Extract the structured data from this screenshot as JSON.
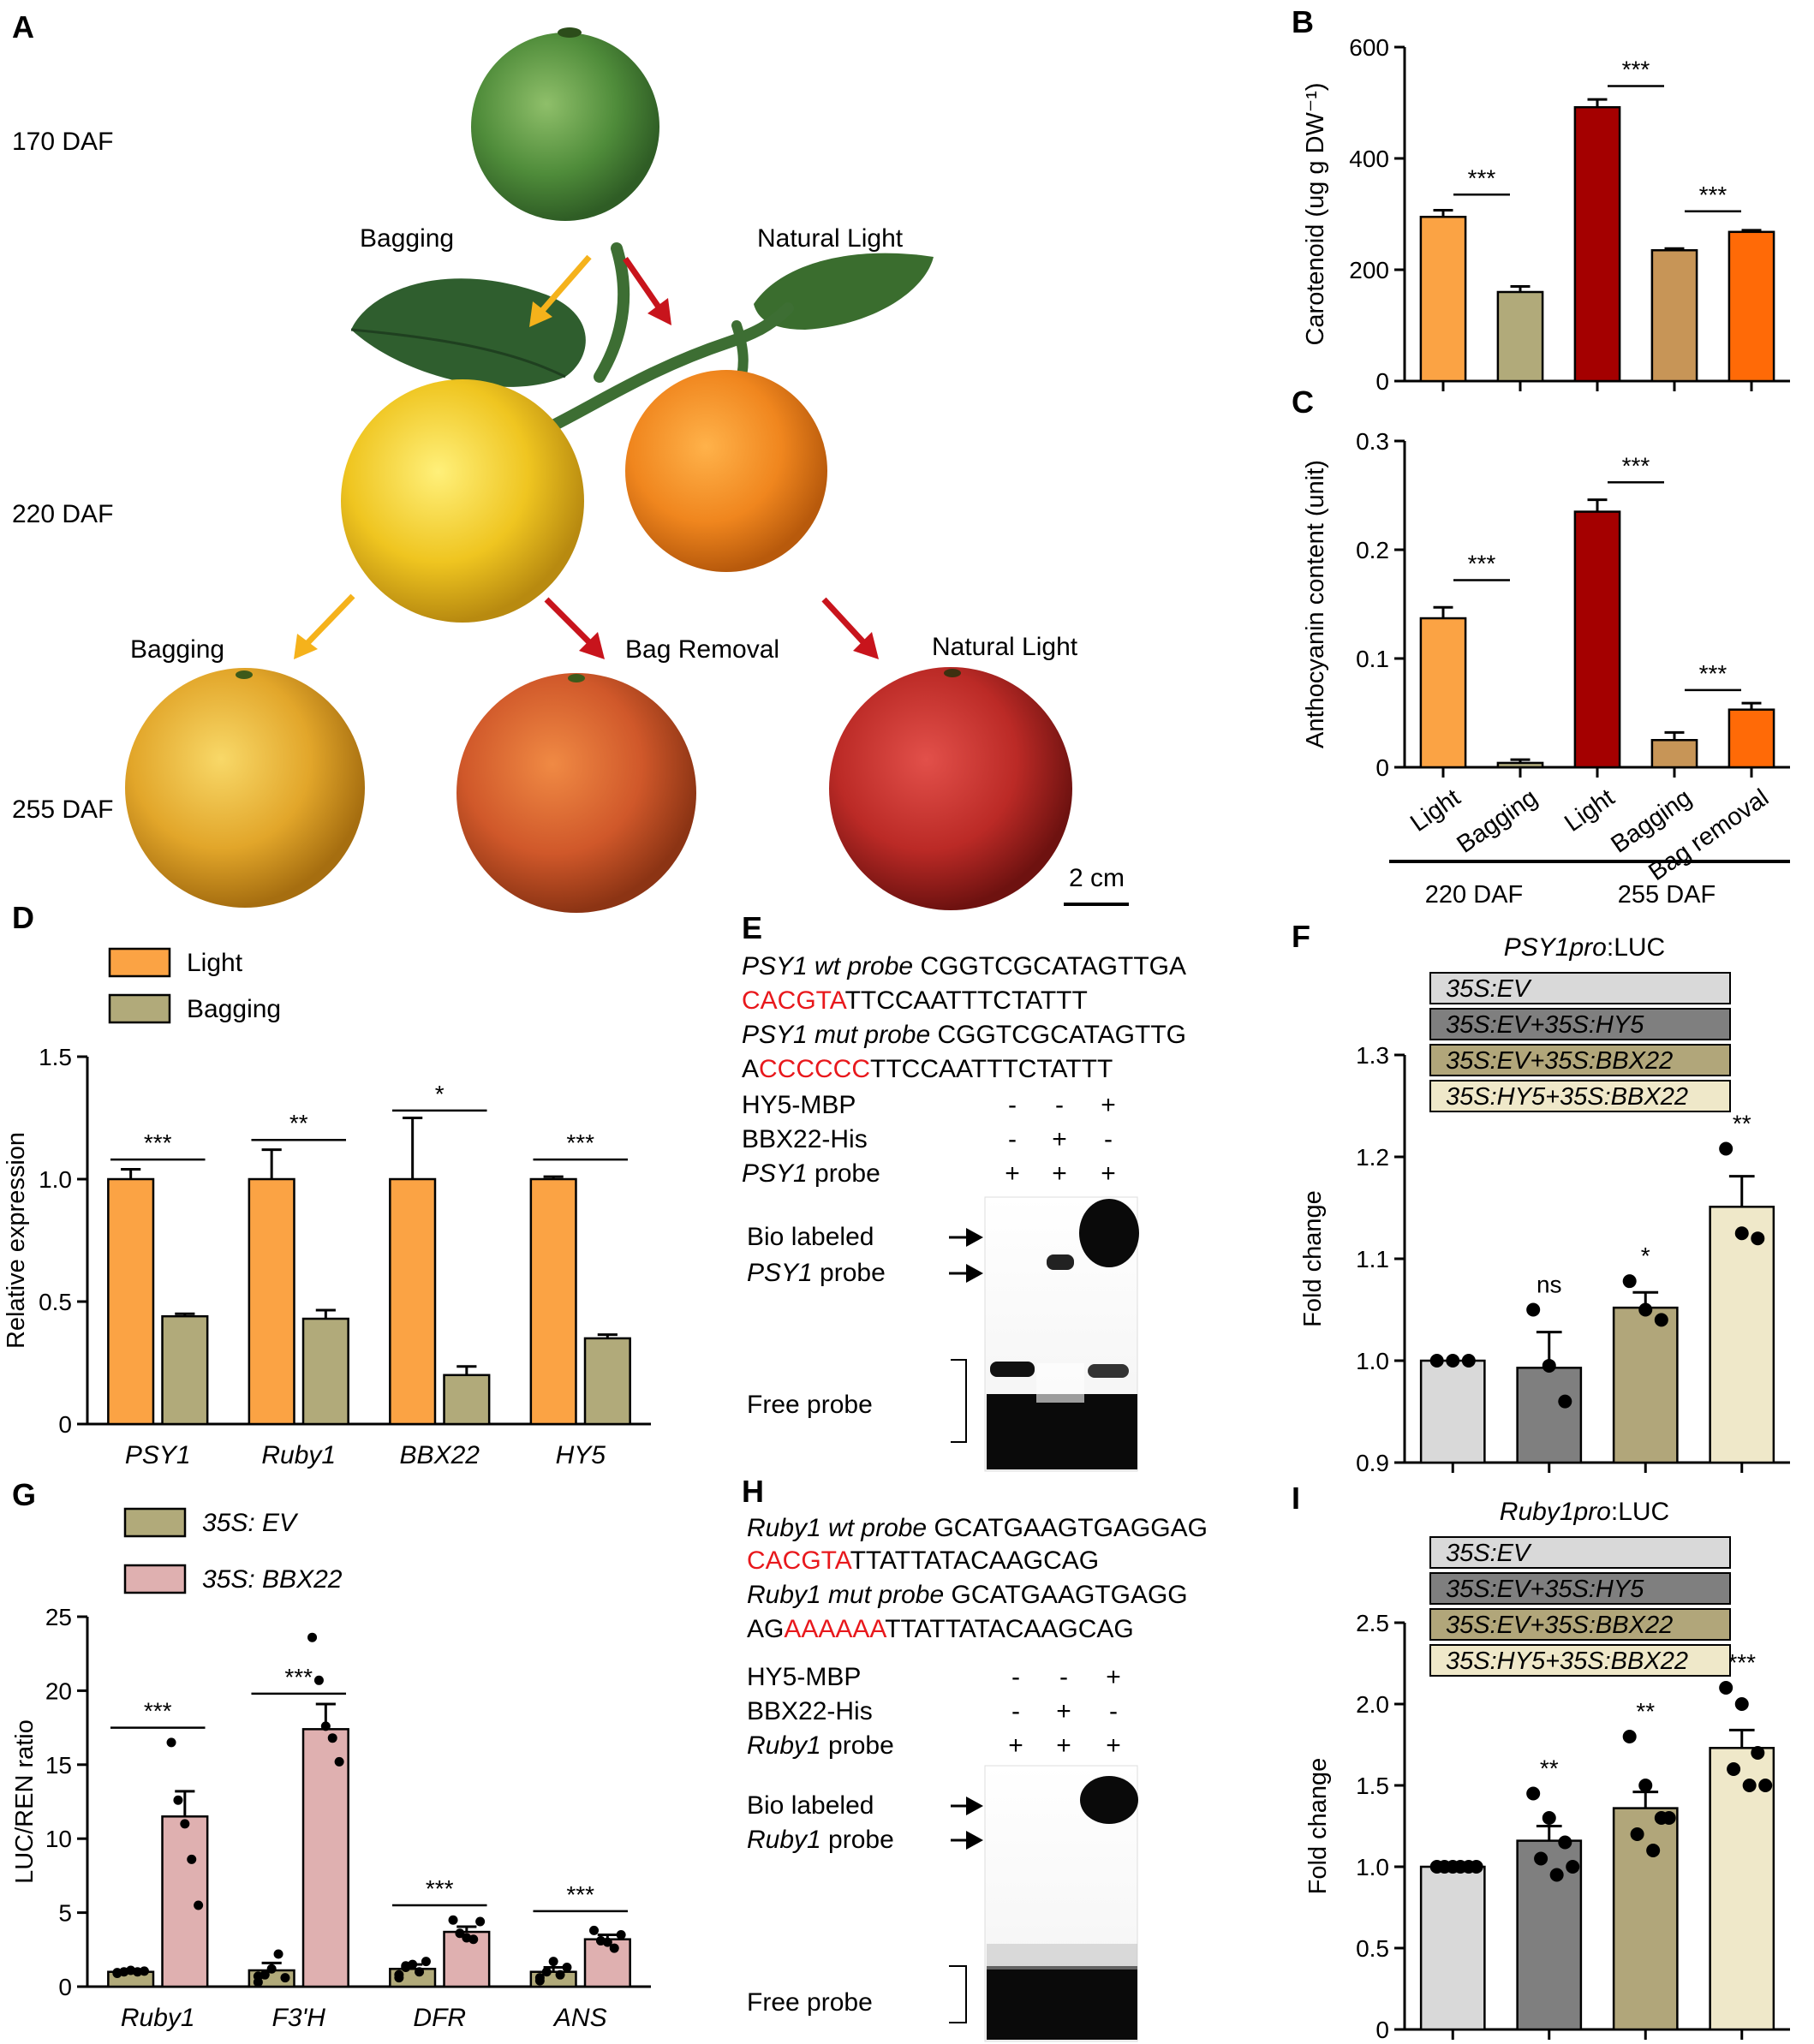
{
  "panels": {
    "A": {
      "letter": "A",
      "stages": [
        "170 DAF",
        "220 DAF",
        "255 DAF"
      ],
      "treatment_labels": {
        "bagging_1": "Bagging",
        "natural_light_1": "Natural Light",
        "bagging_2": "Bagging",
        "bag_removal": "Bag Removal",
        "natural_light_2": "Natural Light"
      },
      "scale_bar": "2 cm",
      "colors": {
        "bagging_arrow": "#f5b21b",
        "light_arrow": "#c8141c"
      }
    },
    "B": {
      "letter": "B"
    },
    "C": {
      "letter": "C"
    },
    "D": {
      "letter": "D"
    },
    "E": {
      "letter": "E",
      "wt_label": "PSY1 wt probe",
      "wt_seq_1": "CGGTCGCATAGTTGA",
      "wt_motif": "CACGTA",
      "wt_seq_2": "TTCCAATTTCTATTT",
      "mut_label": "PSY1 mut probe",
      "mut_seq_1": "CGGTCGCATAGTTG",
      "mut_prefix": "A",
      "mut_motif": "CCCCCC",
      "mut_seq_2": "TTCCAATTTCTATTT",
      "rows": [
        {
          "label": "HY5-MBP",
          "italic_part": "",
          "marks": [
            "-",
            "-",
            "+"
          ]
        },
        {
          "label": "BBX22-His",
          "italic_part": "",
          "marks": [
            "-",
            "+",
            "-"
          ]
        },
        {
          "label": " probe",
          "italic_part": "PSY1",
          "marks": [
            "+",
            "+",
            "+"
          ]
        }
      ],
      "bio_label_1": "Bio labeled",
      "bio_label_2_italic": "PSY1",
      "bio_label_2": " probe",
      "free_probe": "Free probe"
    },
    "F": {
      "letter": "F"
    },
    "G": {
      "letter": "G"
    },
    "H": {
      "letter": "H",
      "wt_label": "Ruby1 wt probe",
      "wt_seq_1": "GCATGAAGTGAGGAG",
      "wt_motif": "CACGTA",
      "wt_seq_2": "TTATTATACAAGCAG",
      "mut_label": "Ruby1 mut probe",
      "mut_seq_1": "GCATGAAGTGAGG",
      "mut_prefix": "AG",
      "mut_motif": "AAAAAA",
      "mut_seq_2": "TTATTATACAAGCAG",
      "rows": [
        {
          "label": "HY5-MBP",
          "italic_part": "",
          "marks": [
            "-",
            "-",
            "+"
          ]
        },
        {
          "label": "BBX22-His",
          "italic_part": "",
          "marks": [
            "-",
            "+",
            "-"
          ]
        },
        {
          "label": " probe",
          "italic_part": "Ruby1",
          "marks": [
            "+",
            "+",
            "+"
          ]
        }
      ],
      "bio_label_1": "Bio labeled",
      "bio_label_2_italic": "Ruby1",
      "bio_label_2": " probe",
      "free_probe": "Free probe"
    },
    "I": {
      "letter": "I"
    }
  },
  "chart_data": [
    {
      "id": "B",
      "type": "bar",
      "ylabel": "Carotenoid (ug g DW⁻¹)",
      "ylim": [
        0,
        600
      ],
      "yticks": [
        0,
        200,
        400,
        600
      ],
      "bars": [
        {
          "value": 295,
          "err": 12,
          "color": "#fba344"
        },
        {
          "value": 160,
          "err": 10,
          "color": "#b1aa7a"
        },
        {
          "value": 492,
          "err": 14,
          "color": "#a40000"
        },
        {
          "value": 235,
          "err": 3,
          "color": "#c79557"
        },
        {
          "value": 268,
          "err": 3,
          "color": "#ff6a07"
        }
      ],
      "sig": [
        {
          "from": 0,
          "to": 1,
          "y": 335,
          "label": "***"
        },
        {
          "from": 2,
          "to": 3,
          "y": 530,
          "label": "***"
        },
        {
          "from": 3,
          "to": 4,
          "y": 305,
          "label": "***"
        }
      ]
    },
    {
      "id": "C",
      "type": "bar",
      "ylabel": "Anthocyanin content (unit)",
      "ylim": [
        0,
        0.3
      ],
      "yticks": [
        0,
        0.1,
        0.2,
        0.3
      ],
      "categories": [
        "Light",
        "Bagging",
        "Light",
        "Bagging",
        "Bag removal"
      ],
      "groups": [
        {
          "label": "220 DAF",
          "from": 0,
          "to": 1
        },
        {
          "label": "255 DAF",
          "from": 2,
          "to": 4
        }
      ],
      "bars": [
        {
          "value": 0.137,
          "err": 0.01,
          "color": "#fba344"
        },
        {
          "value": 0.004,
          "err": 0.003,
          "color": "#b1aa7a"
        },
        {
          "value": 0.235,
          "err": 0.011,
          "color": "#a40000"
        },
        {
          "value": 0.025,
          "err": 0.007,
          "color": "#c79557"
        },
        {
          "value": 0.053,
          "err": 0.006,
          "color": "#ff6a07"
        }
      ],
      "sig": [
        {
          "from": 0,
          "to": 1,
          "y": 0.172,
          "label": "***"
        },
        {
          "from": 2,
          "to": 3,
          "y": 0.262,
          "label": "***"
        },
        {
          "from": 3,
          "to": 4,
          "y": 0.071,
          "label": "***"
        }
      ]
    },
    {
      "id": "D",
      "type": "bar",
      "ylabel": "Relative expression",
      "ylim": [
        0,
        1.5
      ],
      "yticks": [
        0,
        0.5,
        1.0,
        1.5
      ],
      "categories": [
        "PSY1",
        "Ruby1",
        "BBX22",
        "HY5"
      ],
      "series": [
        {
          "name": "Light",
          "color": "#fba344",
          "values": [
            1.0,
            1.0,
            1.0,
            1.0
          ],
          "err": [
            0.04,
            0.12,
            0.25,
            0.01
          ]
        },
        {
          "name": "Bagging",
          "color": "#b1aa7a",
          "values": [
            0.44,
            0.43,
            0.2,
            0.35
          ],
          "err": [
            0.01,
            0.035,
            0.035,
            0.015
          ]
        }
      ],
      "sig": [
        {
          "cat": 0,
          "y": 1.08,
          "label": "***"
        },
        {
          "cat": 1,
          "y": 1.16,
          "label": "**"
        },
        {
          "cat": 2,
          "y": 1.28,
          "label": "*"
        },
        {
          "cat": 3,
          "y": 1.08,
          "label": "***"
        }
      ]
    },
    {
      "id": "F",
      "type": "bar",
      "ylabel": "Fold change",
      "ylim": [
        0.9,
        1.3
      ],
      "yticks": [
        0.9,
        1.0,
        1.1,
        1.2,
        1.3
      ],
      "legend_title_italic": "PSY1pro",
      "legend_title_rest": ":LUC",
      "bars": [
        {
          "name": "35S:EV",
          "color": "#d9d9d9",
          "value": 1.0,
          "err": 0.0,
          "points": [
            1.0,
            1.0,
            1.0
          ],
          "sig": ""
        },
        {
          "name": "35S:EV+35S:HY5",
          "color": "#7f7f7f",
          "value": 0.993,
          "err": 0.035,
          "points": [
            1.05,
            0.995,
            0.96
          ],
          "sig": "ns"
        },
        {
          "name": "35S:EV+35S:BBX22",
          "color": "#b1a67a",
          "value": 1.052,
          "err": 0.015,
          "points": [
            1.078,
            1.05,
            1.04
          ],
          "sig": "*"
        },
        {
          "name": "35S:HY5+35S:BBX22",
          "color": "#efe8c9",
          "value": 1.151,
          "err": 0.03,
          "points": [
            1.208,
            1.125,
            1.12
          ],
          "sig": "**"
        }
      ]
    },
    {
      "id": "G",
      "type": "bar",
      "ylabel": "LUC/REN ratio",
      "ylim": [
        0,
        25
      ],
      "yticks": [
        0,
        5,
        10,
        15,
        20,
        25
      ],
      "categories": [
        "Ruby1",
        "F3'H",
        "DFR",
        "ANS"
      ],
      "series": [
        {
          "name": "35S: EV",
          "color": "#b1aa7a",
          "values": [
            1.0,
            1.1,
            1.2,
            1.0
          ],
          "err": [
            0.15,
            0.5,
            0.3,
            0.3
          ],
          "points": [
            [
              0.9,
              1.0,
              1.1,
              1.0,
              1.05,
              0.95
            ],
            [
              0.3,
              0.8,
              1.2,
              2.2,
              0.6,
              0.7
            ],
            [
              0.8,
              1.3,
              1.5,
              1.0,
              1.7,
              0.6,
              1.4
            ],
            [
              0.4,
              1.0,
              1.7,
              0.8,
              1.3,
              0.6
            ]
          ]
        },
        {
          "name": "35S: BBX22",
          "color": "#dfb0b0",
          "values": [
            11.5,
            17.4,
            3.7,
            3.2
          ],
          "err": [
            1.7,
            1.7,
            0.35,
            0.3
          ],
          "points": [
            [
              16.5,
              12.6,
              11.0,
              8.6,
              5.5
            ],
            [
              23.6,
              20.7,
              17.6,
              16.8,
              15.2
            ],
            [
              4.5,
              3.6,
              3.3,
              3.2,
              4.4
            ],
            [
              3.8,
              3.1,
              3.0,
              2.6,
              3.5
            ]
          ]
        }
      ],
      "sig": [
        {
          "cat": 0,
          "y": 17.5,
          "label": "***"
        },
        {
          "cat": 1,
          "y": 19.8,
          "label": "***"
        },
        {
          "cat": 2,
          "y": 5.5,
          "label": "***"
        },
        {
          "cat": 3,
          "y": 5.1,
          "label": "***"
        }
      ]
    },
    {
      "id": "I",
      "type": "bar",
      "ylabel": "Fold change",
      "ylim": [
        0,
        2.5
      ],
      "yticks": [
        0,
        0.5,
        1.0,
        1.5,
        2.0,
        2.5
      ],
      "legend_title_italic": "Ruby1pro",
      "legend_title_rest": ":LUC",
      "bars": [
        {
          "name": "35S:EV",
          "color": "#d9d9d9",
          "value": 1.0,
          "err": 0.0,
          "points": [
            1.0,
            1.0,
            1.0,
            1.0,
            1.0,
            1.0
          ],
          "sig": ""
        },
        {
          "name": "35S:EV+35S:HY5",
          "color": "#7f7f7f",
          "value": 1.16,
          "err": 0.09,
          "points": [
            1.45,
            1.3,
            1.15,
            1.05,
            0.95,
            1.0
          ],
          "sig": "**"
        },
        {
          "name": "35S:EV+35S:BBX22",
          "color": "#b1a67a",
          "value": 1.36,
          "err": 0.1,
          "points": [
            1.8,
            1.5,
            1.3,
            1.2,
            1.1,
            1.3
          ],
          "sig": "**"
        },
        {
          "name": "35S:HY5+35S:BBX22",
          "color": "#efe8c9",
          "value": 1.73,
          "err": 0.11,
          "points": [
            2.1,
            2.0,
            1.7,
            1.6,
            1.5,
            1.5
          ],
          "sig": "***"
        }
      ]
    }
  ]
}
